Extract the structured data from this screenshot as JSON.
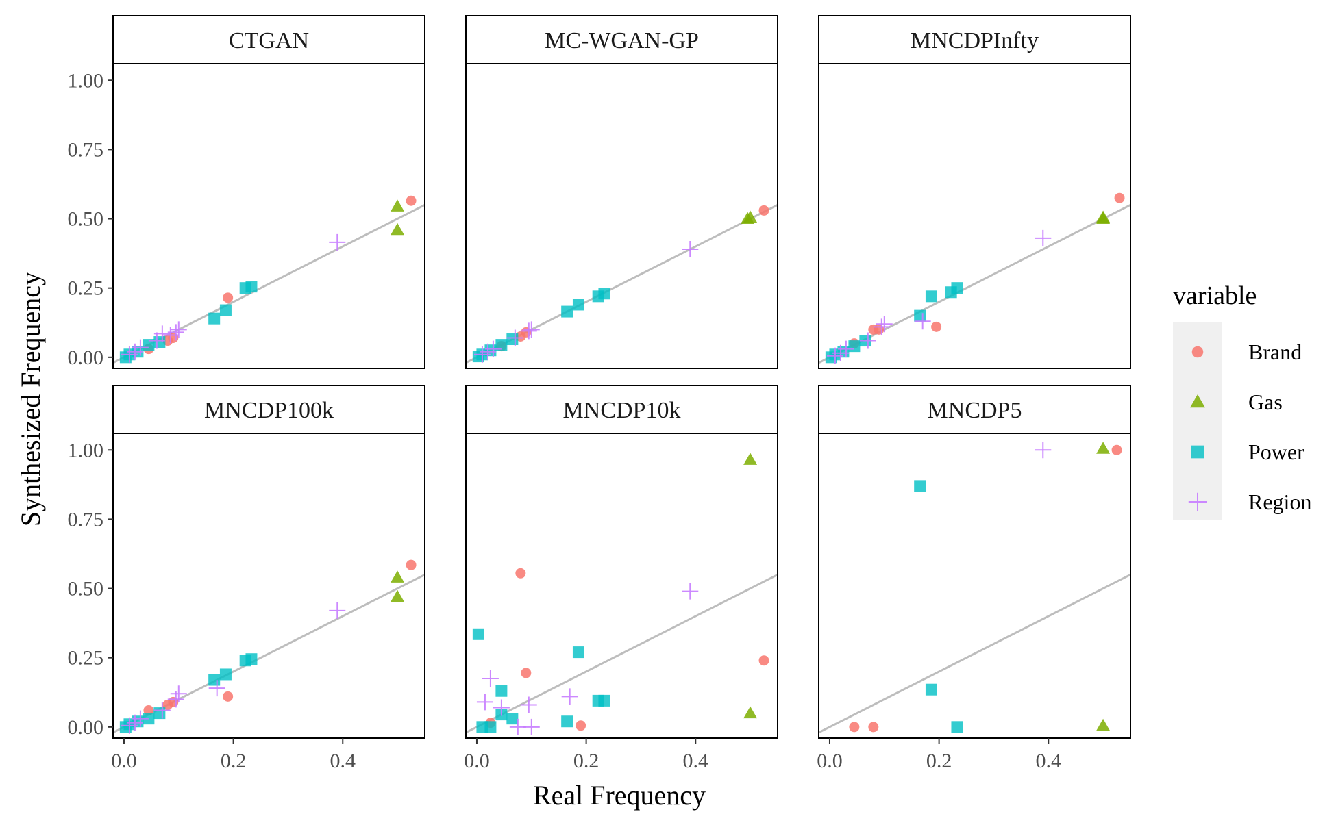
{
  "chart_data": {
    "type": "scatter",
    "xlabel": "Real Frequency",
    "ylabel": "Synthesized Frequency",
    "xlim": [
      -0.02,
      0.55
    ],
    "ylim": [
      -0.04,
      1.06
    ],
    "x_ticks": [
      0.0,
      0.2,
      0.4
    ],
    "x_tick_labels": [
      "0.0",
      "0.2",
      "0.4"
    ],
    "y_ticks": [
      0,
      0.25,
      0.5,
      0.75,
      1.0
    ],
    "y_tick_labels": [
      "0.00",
      "0.25",
      "0.50",
      "0.75",
      "1.00"
    ],
    "reference_line": "y = x",
    "legend": {
      "title": "variable",
      "position": "right",
      "entries": [
        {
          "name": "Brand",
          "color": "#F8766D",
          "shape": "circle"
        },
        {
          "name": "Gas",
          "color": "#7CAE00",
          "shape": "triangle"
        },
        {
          "name": "Power",
          "color": "#00BFC4",
          "shape": "square"
        },
        {
          "name": "Region",
          "color": "#C77CFF",
          "shape": "cross"
        }
      ]
    },
    "panels": [
      {
        "title": "CTGAN",
        "series": [
          {
            "name": "Brand",
            "points": [
              [
                0.525,
                0.565
              ],
              [
                0.19,
                0.215
              ],
              [
                0.09,
                0.07
              ],
              [
                0.08,
                0.06
              ],
              [
                0.045,
                0.03
              ]
            ]
          },
          {
            "name": "Gas",
            "points": [
              [
                0.5,
                0.545
              ],
              [
                0.5,
                0.46
              ]
            ]
          },
          {
            "name": "Power",
            "points": [
              [
                0.233,
                0.255
              ],
              [
                0.222,
                0.25
              ],
              [
                0.186,
                0.17
              ],
              [
                0.165,
                0.14
              ],
              [
                0.065,
                0.055
              ],
              [
                0.045,
                0.045
              ],
              [
                0.025,
                0.02
              ],
              [
                0.01,
                0.01
              ],
              [
                0.003,
                0.0
              ]
            ]
          },
          {
            "name": "Region",
            "points": [
              [
                0.39,
                0.415
              ],
              [
                0.1,
                0.1
              ],
              [
                0.095,
                0.09
              ],
              [
                0.085,
                0.08
              ],
              [
                0.07,
                0.085
              ],
              [
                0.06,
                0.06
              ],
              [
                0.03,
                0.035
              ],
              [
                0.02,
                0.02
              ],
              [
                0.01,
                0.01
              ]
            ]
          }
        ]
      },
      {
        "title": "MC-WGAN-GP",
        "series": [
          {
            "name": "Brand",
            "points": [
              [
                0.525,
                0.53
              ],
              [
                0.09,
                0.09
              ],
              [
                0.08,
                0.075
              ],
              [
                0.045,
                0.04
              ]
            ]
          },
          {
            "name": "Gas",
            "points": [
              [
                0.5,
                0.505
              ],
              [
                0.495,
                0.5
              ]
            ]
          },
          {
            "name": "Power",
            "points": [
              [
                0.233,
                0.23
              ],
              [
                0.222,
                0.22
              ],
              [
                0.186,
                0.19
              ],
              [
                0.165,
                0.165
              ],
              [
                0.065,
                0.065
              ],
              [
                0.045,
                0.045
              ],
              [
                0.025,
                0.025
              ],
              [
                0.01,
                0.01
              ],
              [
                0.003,
                0.003
              ]
            ]
          },
          {
            "name": "Region",
            "points": [
              [
                0.39,
                0.39
              ],
              [
                0.1,
                0.1
              ],
              [
                0.095,
                0.095
              ],
              [
                0.07,
                0.07
              ],
              [
                0.03,
                0.03
              ],
              [
                0.02,
                0.02
              ],
              [
                0.01,
                0.01
              ]
            ]
          }
        ]
      },
      {
        "title": "MNCDPInfty",
        "series": [
          {
            "name": "Brand",
            "points": [
              [
                0.53,
                0.575
              ],
              [
                0.195,
                0.11
              ],
              [
                0.09,
                0.1
              ],
              [
                0.08,
                0.1
              ],
              [
                0.045,
                0.05
              ]
            ]
          },
          {
            "name": "Gas",
            "points": [
              [
                0.5,
                0.5
              ],
              [
                0.5,
                0.505
              ]
            ]
          },
          {
            "name": "Power",
            "points": [
              [
                0.233,
                0.25
              ],
              [
                0.222,
                0.235
              ],
              [
                0.186,
                0.22
              ],
              [
                0.165,
                0.15
              ],
              [
                0.065,
                0.06
              ],
              [
                0.045,
                0.04
              ],
              [
                0.025,
                0.02
              ],
              [
                0.01,
                0.01
              ],
              [
                0.003,
                0.0
              ]
            ]
          },
          {
            "name": "Region",
            "points": [
              [
                0.39,
                0.43
              ],
              [
                0.17,
                0.13
              ],
              [
                0.1,
                0.12
              ],
              [
                0.095,
                0.11
              ],
              [
                0.07,
                0.06
              ],
              [
                0.03,
                0.03
              ],
              [
                0.02,
                0.015
              ],
              [
                0.01,
                0.005
              ]
            ]
          }
        ]
      },
      {
        "title": "MNCDP100k",
        "series": [
          {
            "name": "Brand",
            "points": [
              [
                0.525,
                0.585
              ],
              [
                0.19,
                0.11
              ],
              [
                0.09,
                0.09
              ],
              [
                0.08,
                0.08
              ],
              [
                0.045,
                0.06
              ]
            ]
          },
          {
            "name": "Gas",
            "points": [
              [
                0.5,
                0.54
              ],
              [
                0.5,
                0.47
              ]
            ]
          },
          {
            "name": "Power",
            "points": [
              [
                0.233,
                0.245
              ],
              [
                0.222,
                0.24
              ],
              [
                0.186,
                0.19
              ],
              [
                0.165,
                0.17
              ],
              [
                0.065,
                0.05
              ],
              [
                0.045,
                0.03
              ],
              [
                0.025,
                0.02
              ],
              [
                0.01,
                0.01
              ],
              [
                0.003,
                0.0
              ]
            ]
          },
          {
            "name": "Region",
            "points": [
              [
                0.39,
                0.42
              ],
              [
                0.17,
                0.14
              ],
              [
                0.1,
                0.12
              ],
              [
                0.095,
                0.1
              ],
              [
                0.07,
                0.06
              ],
              [
                0.03,
                0.03
              ],
              [
                0.02,
                0.015
              ],
              [
                0.01,
                0.005
              ]
            ]
          }
        ]
      },
      {
        "title": "MNCDP10k",
        "series": [
          {
            "name": "Brand",
            "points": [
              [
                0.08,
                0.555
              ],
              [
                0.09,
                0.195
              ],
              [
                0.525,
                0.24
              ],
              [
                0.19,
                0.005
              ],
              [
                0.025,
                0.015
              ]
            ]
          },
          {
            "name": "Gas",
            "points": [
              [
                0.5,
                0.965
              ],
              [
                0.5,
                0.05
              ]
            ]
          },
          {
            "name": "Power",
            "points": [
              [
                0.003,
                0.335
              ],
              [
                0.186,
                0.27
              ],
              [
                0.045,
                0.13
              ],
              [
                0.222,
                0.095
              ],
              [
                0.233,
                0.095
              ],
              [
                0.065,
                0.03
              ],
              [
                0.165,
                0.02
              ],
              [
                0.045,
                0.045
              ],
              [
                0.01,
                0.0
              ],
              [
                0.025,
                0.0
              ]
            ]
          },
          {
            "name": "Region",
            "points": [
              [
                0.39,
                0.49
              ],
              [
                0.025,
                0.175
              ],
              [
                0.17,
                0.11
              ],
              [
                0.015,
                0.09
              ],
              [
                0.095,
                0.08
              ],
              [
                0.045,
                0.07
              ],
              [
                0.075,
                0.0
              ],
              [
                0.1,
                0.0
              ]
            ]
          }
        ]
      },
      {
        "title": "MNCDP5",
        "series": [
          {
            "name": "Brand",
            "points": [
              [
                0.525,
                1.0
              ],
              [
                0.045,
                0.0
              ],
              [
                0.08,
                0.0
              ]
            ]
          },
          {
            "name": "Gas",
            "points": [
              [
                0.5,
                1.005
              ],
              [
                0.5,
                0.005
              ]
            ]
          },
          {
            "name": "Power",
            "points": [
              [
                0.165,
                0.87
              ],
              [
                0.186,
                0.135
              ],
              [
                0.233,
                0.0
              ]
            ]
          },
          {
            "name": "Region",
            "points": [
              [
                0.39,
                1.0
              ]
            ]
          }
        ]
      }
    ]
  }
}
